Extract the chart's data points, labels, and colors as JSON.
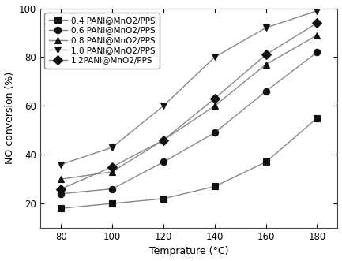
{
  "x": [
    80,
    100,
    120,
    140,
    160,
    180
  ],
  "series": [
    {
      "label": "0.4 PANI@MnO2/PPS",
      "values": [
        18,
        20,
        22,
        27,
        37,
        55
      ],
      "marker": "s",
      "color": "#888888",
      "markercolor": "#111111"
    },
    {
      "label": "0.6 PANI@MnO2/PPS",
      "values": [
        24,
        26,
        37,
        49,
        66,
        82
      ],
      "marker": "o",
      "color": "#888888",
      "markercolor": "#111111"
    },
    {
      "label": "0.8 PANI@MnO2/PPS",
      "values": [
        30,
        33,
        46,
        60,
        77,
        89
      ],
      "marker": "^",
      "color": "#888888",
      "markercolor": "#111111"
    },
    {
      "label": "1.0 PANI@MnO2/PPS",
      "values": [
        36,
        43,
        60,
        80,
        92,
        99
      ],
      "marker": "v",
      "color": "#888888",
      "markercolor": "#111111"
    },
    {
      "label": "1.2PANI@MnO2/PPS",
      "values": [
        26,
        35,
        46,
        63,
        81,
        94
      ],
      "marker": "D",
      "color": "#888888",
      "markercolor": "#111111"
    }
  ],
  "xlabel": "Temprature (°C)",
  "ylabel": "NO conversion (%)",
  "xlim": [
    72,
    188
  ],
  "ylim": [
    10,
    100
  ],
  "xticks": [
    80,
    100,
    120,
    140,
    160,
    180
  ],
  "yticks": [
    20,
    40,
    60,
    80,
    100
  ],
  "background_color": "#ffffff",
  "legend_loc": "upper left",
  "markersize": 6,
  "linewidth": 1.0
}
